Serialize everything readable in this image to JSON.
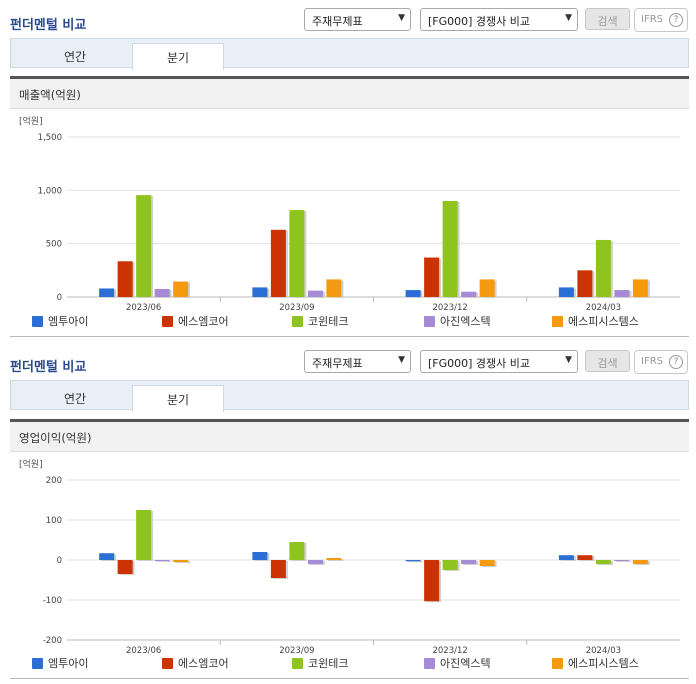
{
  "panels": [
    {
      "title": "펀더멘털 비교",
      "select1": "주재무제표",
      "select2": "[FG000] 경쟁사 비교",
      "search_label": "검색",
      "ifrs_label": "IFRS",
      "tabs": [
        {
          "label": "연간"
        },
        {
          "label": "분기"
        }
      ],
      "section_label": "매출액(억원)"
    },
    {
      "title": "펀더멘털 비교",
      "select1": "주재무제표",
      "select2": "[FG000] 경쟁사 비교",
      "search_label": "검색",
      "ifrs_label": "IFRS",
      "tabs": [
        {
          "label": "연간"
        },
        {
          "label": "분기"
        }
      ],
      "section_label": "영업이익(억원)"
    }
  ],
  "chart_data": [
    {
      "type": "bar",
      "unit_label": "[억원]",
      "categories": [
        "2023/06",
        "2023/09",
        "2023/12",
        "2024/03"
      ],
      "ylim": [
        0,
        1500
      ],
      "yticks": [
        0,
        500,
        1000,
        1500
      ],
      "ytick_labels": [
        "0",
        "500",
        "1,000",
        "1,500"
      ],
      "series": [
        {
          "name": "엠투아이",
          "color": "#2b6fd6",
          "values": [
            80,
            90,
            65,
            90
          ]
        },
        {
          "name": "에스엠코어",
          "color": "#cc3300",
          "values": [
            335,
            630,
            370,
            250
          ]
        },
        {
          "name": "코윈테크",
          "color": "#8fc31f",
          "values": [
            955,
            815,
            900,
            535
          ]
        },
        {
          "name": "아진엑스텍",
          "color": "#a68ad6",
          "values": [
            75,
            60,
            50,
            65
          ]
        },
        {
          "name": "에스피시스템스",
          "color": "#f59a10",
          "values": [
            145,
            165,
            165,
            165
          ]
        }
      ]
    },
    {
      "type": "bar",
      "unit_label": "[억원]",
      "categories": [
        "2023/06",
        "2023/09",
        "2023/12",
        "2024/03"
      ],
      "ylim": [
        -200,
        200
      ],
      "yticks": [
        -200,
        -100,
        0,
        100,
        200
      ],
      "ytick_labels": [
        "-200",
        "-100",
        "0",
        "100",
        "200"
      ],
      "series": [
        {
          "name": "엠투아이",
          "color": "#2b6fd6",
          "values": [
            17,
            20,
            -3,
            12
          ]
        },
        {
          "name": "에스엠코어",
          "color": "#cc3300",
          "values": [
            -35,
            -45,
            -103,
            12
          ]
        },
        {
          "name": "코윈테크",
          "color": "#8fc31f",
          "values": [
            125,
            45,
            -25,
            -10
          ]
        },
        {
          "name": "아진엑스텍",
          "color": "#a68ad6",
          "values": [
            -2,
            -10,
            -10,
            0
          ]
        },
        {
          "name": "에스피시스템스",
          "color": "#f59a10",
          "values": [
            -5,
            5,
            -15,
            -10
          ]
        }
      ]
    }
  ]
}
